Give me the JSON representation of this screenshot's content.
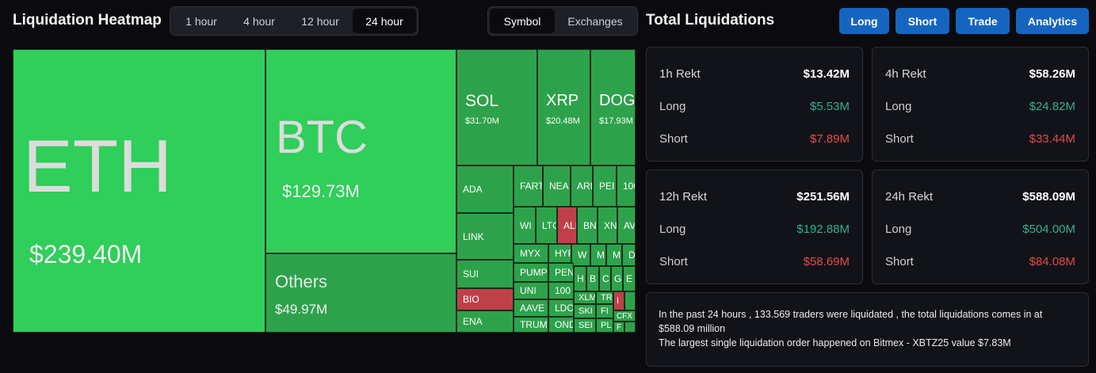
{
  "heatmap": {
    "title": "Liquidation Heatmap",
    "time_options": [
      "1 hour",
      "4 hour",
      "12 hour",
      "24 hour"
    ],
    "active_time": "24 hour",
    "view_options": [
      "Symbol",
      "Exchanges"
    ],
    "active_view": "Symbol",
    "tiles": {
      "eth": {
        "symbol": "ETH",
        "value": "$239.40M"
      },
      "btc": {
        "symbol": "BTC",
        "value": "$129.73M"
      },
      "others": {
        "symbol": "Others",
        "value": "$49.97M"
      },
      "sol": {
        "symbol": "SOL",
        "value": "$31.70M"
      },
      "xrp": {
        "symbol": "XRP",
        "value": "$20.48M"
      },
      "doge": {
        "symbol": "DOG",
        "value": "$17.93M"
      },
      "small": {
        "ada": "ADA",
        "link": "LINK",
        "sui": "SUI",
        "bio": "BIO",
        "ena": "ENA",
        "fart": "FART",
        "nea": "NEA",
        "ari": "ARI",
        "pep": "PEI",
        "k100": "100",
        "wi": "WI",
        "ltc": "LTC",
        "ali": "ALI",
        "bn": "BN",
        "xn": "XN",
        "av": "AV",
        "myx": "MYX",
        "hyp": "HYF",
        "w": "W",
        "m": "M",
        "m2": "M",
        "d": "D",
        "pump": "PUMP",
        "pen": "PEN",
        "h": "H",
        "b": "B",
        "c": "C",
        "g": "G",
        "e": "E",
        "uni": "UNI",
        "k100b": "100",
        "xlm": "XLM",
        "tr": "TR",
        "i": "I",
        "aave": "AAVE",
        "ldo": "LDO",
        "sk": "SKI",
        "fi": "FI",
        "cfx": "CFX",
        "trum": "TRUM",
        "ond": "OND",
        "se": "SEI",
        "pl": "PL",
        "f": "F"
      }
    }
  },
  "totals": {
    "title": "Total Liquidations",
    "buttons": [
      "Long",
      "Short",
      "Trade",
      "Analytics"
    ],
    "cards": [
      {
        "label": "1h Rekt",
        "total": "$13.42M",
        "long_label": "Long",
        "long": "$5.53M",
        "short_label": "Short",
        "short": "$7.89M"
      },
      {
        "label": "4h Rekt",
        "total": "$58.26M",
        "long_label": "Long",
        "long": "$24.82M",
        "short_label": "Short",
        "short": "$33.44M"
      },
      {
        "label": "12h Rekt",
        "total": "$251.56M",
        "long_label": "Long",
        "long": "$192.88M",
        "short_label": "Short",
        "short": "$58.69M"
      },
      {
        "label": "24h Rekt",
        "total": "$588.09M",
        "long_label": "Long",
        "long": "$504.00M",
        "short_label": "Short",
        "short": "$84.08M"
      }
    ],
    "summary_line1": "In the past 24 hours , 133.569 traders were liquidated , the total liquidations comes in at $588.09 million",
    "summary_line2": "The largest single liquidation order happened on Bitmex - XBTZ25 value $7.83M"
  },
  "colors": {
    "positive": "#2fb08d",
    "negative": "#e5484d",
    "accent": "#1565c0",
    "tile_big": "#30ce5a",
    "tile": "#2ea24b",
    "tile_red": "#c0404a"
  }
}
